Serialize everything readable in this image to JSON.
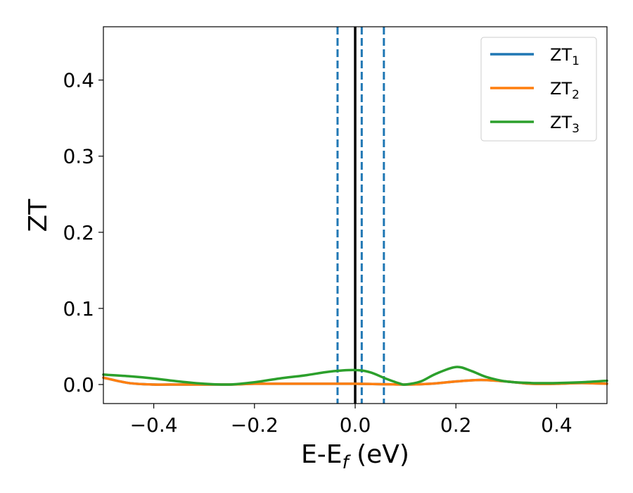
{
  "chart_data": {
    "type": "line",
    "xlabel": "E-E",
    "xlabel_sub": "f",
    "xlabel_unit": " (eV)",
    "ylabel": "ZT",
    "xlim": [
      -0.5,
      0.5
    ],
    "ylim": [
      -0.025,
      0.47
    ],
    "x_ticks": [
      -0.4,
      -0.2,
      0.0,
      0.2,
      0.4
    ],
    "x_tick_labels": [
      "−0.4",
      "−0.2",
      "0.0",
      "0.2",
      "0.4"
    ],
    "y_ticks": [
      0.0,
      0.1,
      0.2,
      0.3,
      0.4
    ],
    "y_tick_labels": [
      "0.0",
      "0.1",
      "0.2",
      "0.3",
      "0.4"
    ],
    "grid": false,
    "legend_position": "top-right",
    "vertical_lines": [
      {
        "x": 0.0,
        "style": "solid",
        "color": "#000000"
      },
      {
        "x": -0.035,
        "style": "dashed",
        "color": "#1f77b4"
      },
      {
        "x": 0.013,
        "style": "dashed",
        "color": "#1f77b4"
      },
      {
        "x": 0.057,
        "style": "dashed",
        "color": "#1f77b4"
      }
    ],
    "series": [
      {
        "name": "ZT",
        "name_sub": "1",
        "color": "#1f77b4",
        "x": [
          -0.5,
          -0.45,
          -0.4,
          -0.35,
          -0.3,
          -0.25,
          -0.2,
          -0.15,
          -0.1,
          -0.05,
          0.0,
          0.05,
          0.1,
          0.15,
          0.2,
          0.25,
          0.3,
          0.35,
          0.4,
          0.45,
          0.5
        ],
        "y": [
          0.009,
          0.002,
          0.0,
          0.0,
          0.0,
          0.0,
          0.001,
          0.001,
          0.001,
          0.001,
          0.001,
          0.0005,
          0.0,
          0.001,
          0.004,
          0.006,
          0.004,
          0.001,
          0.001,
          0.002,
          0.001
        ]
      },
      {
        "name": "ZT",
        "name_sub": "2",
        "color": "#ff7f0e",
        "x": [
          -0.5,
          -0.45,
          -0.4,
          -0.35,
          -0.3,
          -0.25,
          -0.2,
          -0.15,
          -0.1,
          -0.05,
          0.0,
          0.05,
          0.1,
          0.15,
          0.2,
          0.25,
          0.3,
          0.35,
          0.4,
          0.45,
          0.5
        ],
        "y": [
          0.009,
          0.002,
          0.0,
          0.0,
          0.0,
          0.0,
          0.001,
          0.001,
          0.001,
          0.001,
          0.001,
          0.0005,
          0.0,
          0.001,
          0.004,
          0.006,
          0.004,
          0.001,
          0.001,
          0.002,
          0.001
        ]
      },
      {
        "name": "ZT",
        "name_sub": "3",
        "color": "#2ca02c",
        "x": [
          -0.5,
          -0.45,
          -0.4,
          -0.35,
          -0.3,
          -0.25,
          -0.2,
          -0.15,
          -0.1,
          -0.05,
          0.0,
          0.03,
          0.06,
          0.09,
          0.1,
          0.13,
          0.16,
          0.2,
          0.23,
          0.26,
          0.3,
          0.35,
          0.4,
          0.45,
          0.5
        ],
        "y": [
          0.013,
          0.011,
          0.008,
          0.004,
          0.001,
          0.0,
          0.003,
          0.008,
          0.012,
          0.017,
          0.019,
          0.016,
          0.008,
          0.001,
          0.0,
          0.004,
          0.014,
          0.023,
          0.018,
          0.01,
          0.004,
          0.002,
          0.002,
          0.003,
          0.005
        ]
      }
    ]
  }
}
